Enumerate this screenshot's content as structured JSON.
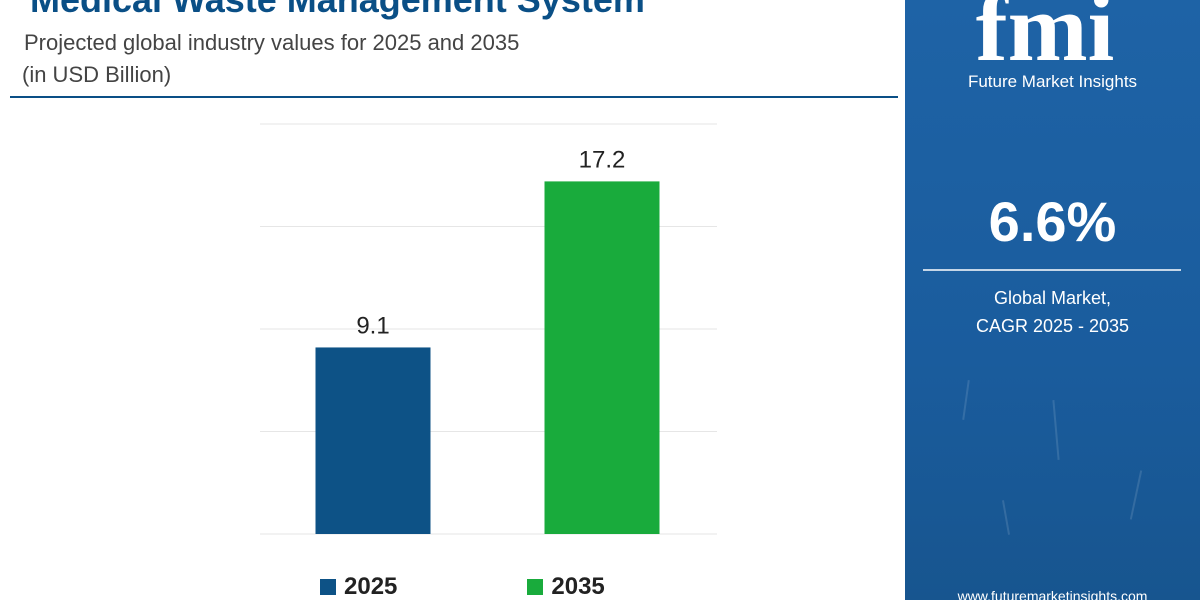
{
  "header": {
    "title": "Medical Waste Management System",
    "subtitle": "Projected global industry values for 2025 and 2035",
    "unit": "(in USD Billion)"
  },
  "sidebar": {
    "brand_logo_text": "fmi",
    "brand_name": "Future Market Insights",
    "cagr_value": "6.6%",
    "cagr_label_line1": "Global Market,",
    "cagr_label_line2": "CAGR 2025 - 2035",
    "website": "www.futuremarketinsights.com"
  },
  "colors": {
    "title": "#0a4f86",
    "bar_2025": "#0d5286",
    "bar_2035": "#19ab3c",
    "sidebar": "#1b5e9f"
  },
  "chart_data": {
    "type": "bar",
    "categories": [
      "2025",
      "2035"
    ],
    "values": [
      9.1,
      17.2
    ],
    "data_labels": [
      "9.1",
      "17.2"
    ],
    "ylim": [
      0,
      20
    ],
    "grid": true,
    "legend": "bottom",
    "legend_entries": [
      "2025",
      "2035"
    ],
    "title": "Medical Waste Management System",
    "xlabel": "",
    "ylabel": ""
  }
}
